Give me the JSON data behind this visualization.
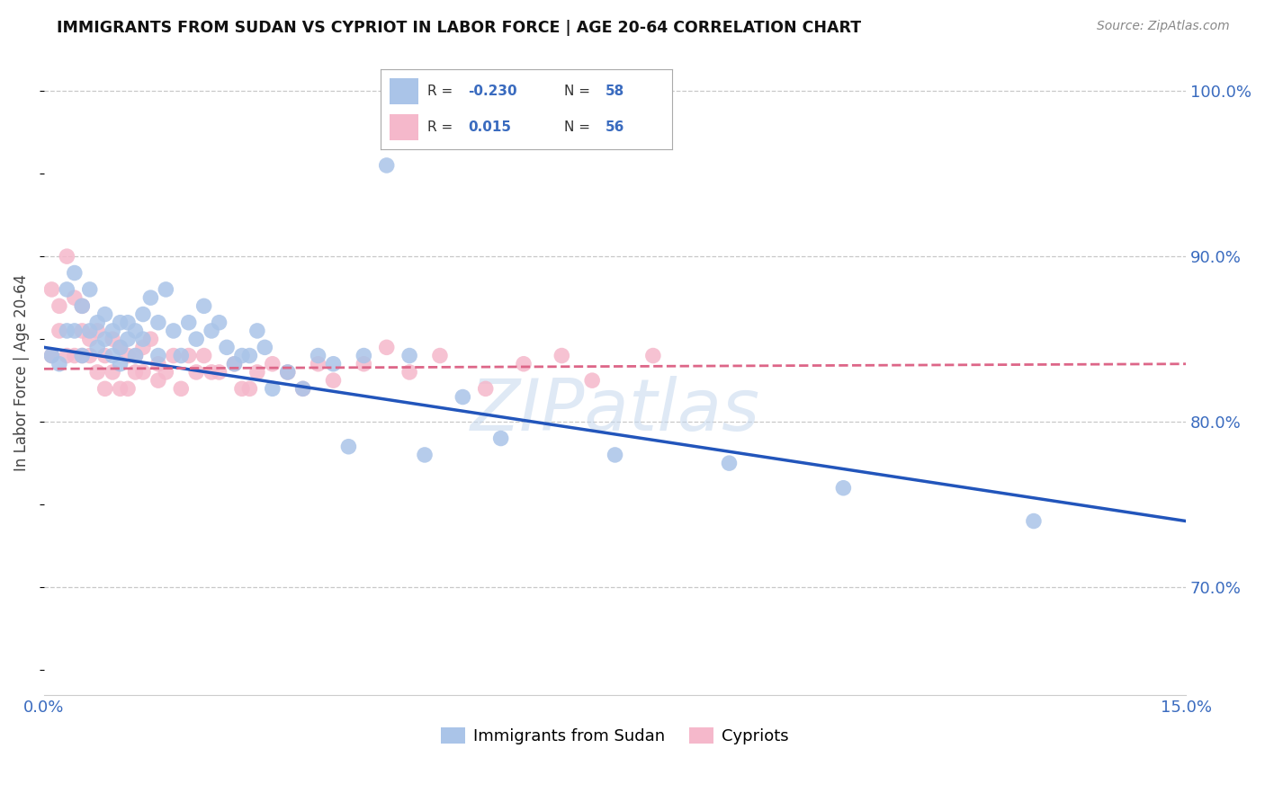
{
  "title": "IMMIGRANTS FROM SUDAN VS CYPRIOT IN LABOR FORCE | AGE 20-64 CORRELATION CHART",
  "source": "Source: ZipAtlas.com",
  "ylabel": "In Labor Force | Age 20-64",
  "xlim": [
    0.0,
    0.15
  ],
  "ylim": [
    0.635,
    1.025
  ],
  "yticks_right": [
    0.7,
    0.8,
    0.9,
    1.0
  ],
  "yticklabels_right": [
    "70.0%",
    "80.0%",
    "90.0%",
    "100.0%"
  ],
  "legend_sudan_R": "-0.230",
  "legend_sudan_N": "58",
  "legend_cypriot_R": "0.015",
  "legend_cypriot_N": "56",
  "sudan_color": "#aac4e8",
  "cypriot_color": "#f5b8cb",
  "sudan_line_color": "#2255bb",
  "cypriot_line_color": "#dd6688",
  "watermark": "ZIPatlas",
  "background_color": "#ffffff",
  "grid_color": "#c8c8c8",
  "sudan_x": [
    0.001,
    0.002,
    0.003,
    0.003,
    0.004,
    0.004,
    0.005,
    0.005,
    0.006,
    0.006,
    0.007,
    0.007,
    0.008,
    0.008,
    0.009,
    0.009,
    0.01,
    0.01,
    0.01,
    0.011,
    0.011,
    0.012,
    0.012,
    0.013,
    0.013,
    0.014,
    0.015,
    0.015,
    0.016,
    0.017,
    0.018,
    0.019,
    0.02,
    0.021,
    0.022,
    0.023,
    0.024,
    0.025,
    0.026,
    0.027,
    0.028,
    0.029,
    0.03,
    0.032,
    0.034,
    0.036,
    0.038,
    0.04,
    0.042,
    0.045,
    0.048,
    0.05,
    0.055,
    0.06,
    0.075,
    0.09,
    0.105,
    0.13
  ],
  "sudan_y": [
    0.84,
    0.835,
    0.88,
    0.855,
    0.89,
    0.855,
    0.84,
    0.87,
    0.88,
    0.855,
    0.845,
    0.86,
    0.865,
    0.85,
    0.855,
    0.84,
    0.86,
    0.845,
    0.835,
    0.85,
    0.86,
    0.855,
    0.84,
    0.865,
    0.85,
    0.875,
    0.86,
    0.84,
    0.88,
    0.855,
    0.84,
    0.86,
    0.85,
    0.87,
    0.855,
    0.86,
    0.845,
    0.835,
    0.84,
    0.84,
    0.855,
    0.845,
    0.82,
    0.83,
    0.82,
    0.84,
    0.835,
    0.785,
    0.84,
    0.955,
    0.84,
    0.78,
    0.815,
    0.79,
    0.78,
    0.775,
    0.76,
    0.74
  ],
  "cypriot_x": [
    0.001,
    0.001,
    0.002,
    0.002,
    0.003,
    0.003,
    0.004,
    0.004,
    0.005,
    0.005,
    0.005,
    0.006,
    0.006,
    0.007,
    0.007,
    0.008,
    0.008,
    0.009,
    0.009,
    0.01,
    0.01,
    0.011,
    0.011,
    0.012,
    0.012,
    0.013,
    0.013,
    0.014,
    0.015,
    0.015,
    0.016,
    0.017,
    0.018,
    0.019,
    0.02,
    0.021,
    0.022,
    0.023,
    0.025,
    0.026,
    0.027,
    0.028,
    0.03,
    0.032,
    0.034,
    0.036,
    0.038,
    0.042,
    0.045,
    0.048,
    0.052,
    0.058,
    0.063,
    0.068,
    0.072,
    0.08
  ],
  "cypriot_y": [
    0.88,
    0.84,
    0.855,
    0.87,
    0.84,
    0.9,
    0.875,
    0.84,
    0.87,
    0.84,
    0.855,
    0.85,
    0.84,
    0.855,
    0.83,
    0.84,
    0.82,
    0.85,
    0.83,
    0.845,
    0.82,
    0.84,
    0.82,
    0.83,
    0.84,
    0.83,
    0.845,
    0.85,
    0.835,
    0.825,
    0.83,
    0.84,
    0.82,
    0.84,
    0.83,
    0.84,
    0.83,
    0.83,
    0.835,
    0.82,
    0.82,
    0.83,
    0.835,
    0.83,
    0.82,
    0.835,
    0.825,
    0.835,
    0.845,
    0.83,
    0.84,
    0.82,
    0.835,
    0.84,
    0.825,
    0.84
  ],
  "sudan_trendline_x": [
    0.0,
    0.15
  ],
  "sudan_trendline_y": [
    0.845,
    0.74
  ],
  "cypriot_trendline_x": [
    0.0,
    0.15
  ],
  "cypriot_trendline_y": [
    0.832,
    0.835
  ]
}
